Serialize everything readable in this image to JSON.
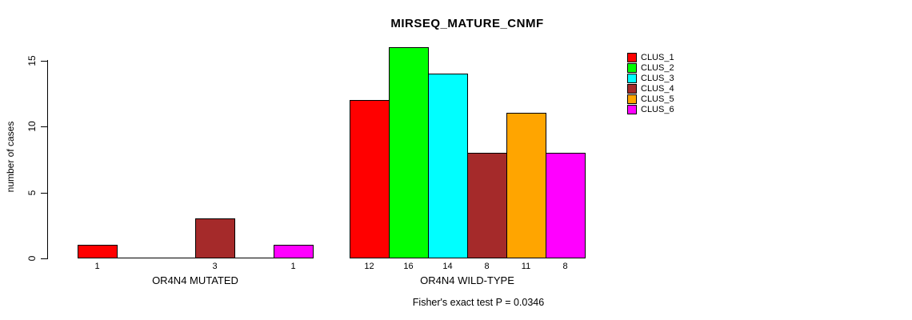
{
  "title": "MIRSEQ_MATURE_CNMF",
  "footer": "Fisher's exact test P = 0.0346",
  "chart_data": {
    "type": "bar",
    "title": "MIRSEQ_MATURE_CNMF",
    "ylabel": "number of cases",
    "xlabel": "",
    "ylim": [
      0,
      16.5
    ],
    "yticks": [
      0,
      5,
      10,
      15
    ],
    "grid": false,
    "legend_position": "right-outside",
    "categories": [
      "OR4N4 MUTATED",
      "OR4N4 WILD-TYPE"
    ],
    "series": [
      {
        "name": "CLUS_1",
        "color": "#FF0000",
        "values": [
          1,
          12
        ]
      },
      {
        "name": "CLUS_2",
        "color": "#00FF00",
        "values": [
          0,
          16
        ]
      },
      {
        "name": "CLUS_3",
        "color": "#00FFFF",
        "values": [
          0,
          14
        ]
      },
      {
        "name": "CLUS_4",
        "color": "#A52A2A",
        "values": [
          3,
          8
        ]
      },
      {
        "name": "CLUS_5",
        "color": "#FFA500",
        "values": [
          0,
          11
        ]
      },
      {
        "name": "CLUS_6",
        "color": "#FF00FF",
        "values": [
          1,
          8
        ]
      }
    ],
    "bar_value_labels": {
      "shown": true,
      "zeros_hidden": true
    },
    "annotation": "Fisher's exact test P = 0.0346",
    "bar_border_color": "#000000",
    "axis_color": "#000000"
  }
}
